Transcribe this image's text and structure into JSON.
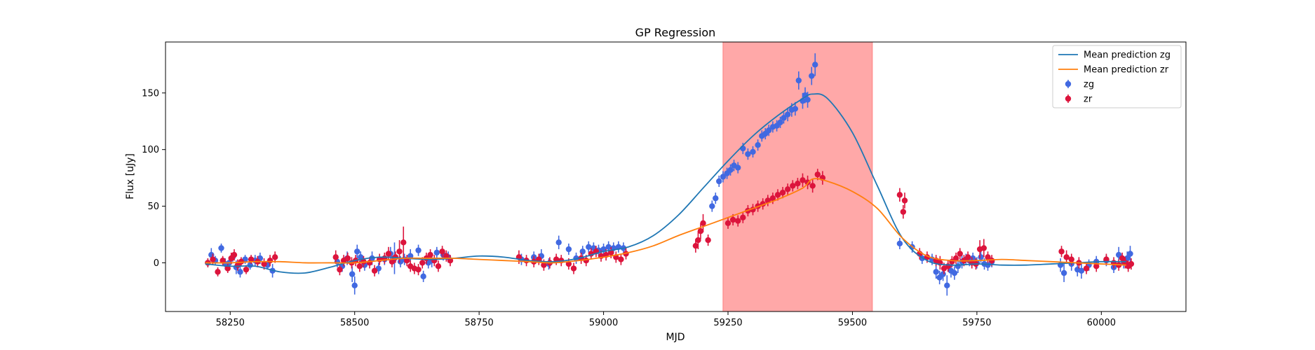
{
  "chart_data": {
    "type": "scatter",
    "title": "GP Regression",
    "xlabel": "MJD",
    "ylabel": "Flux [uJy]",
    "xlim": [
      58120,
      60170
    ],
    "ylim": [
      -43,
      195
    ],
    "xticks": [
      58250,
      58500,
      58750,
      59000,
      59250,
      59500,
      59750,
      60000
    ],
    "yticks": [
      0,
      50,
      100,
      150
    ],
    "grid": false,
    "legend_position": "top-right",
    "shaded_region": {
      "x": [
        59240,
        59540
      ],
      "color": "#ffa8a8"
    },
    "lines": [
      {
        "name": "Mean prediction zg",
        "color": "#1f77b4",
        "x": [
          58200,
          58250,
          58300,
          58350,
          58400,
          58450,
          58500,
          58550,
          58600,
          58650,
          58700,
          58750,
          58800,
          58850,
          58900,
          58950,
          59000,
          59050,
          59100,
          59150,
          59200,
          59250,
          59300,
          59350,
          59400,
          59420,
          59450,
          59500,
          59550,
          59600,
          59650,
          59700,
          59750,
          59800,
          59850,
          59900,
          59950,
          60000,
          60050
        ],
        "y": [
          -1,
          -3,
          -3,
          -8,
          -9,
          -4,
          2,
          5,
          4,
          3,
          4,
          6,
          5,
          2,
          1,
          4,
          10,
          14,
          24,
          42,
          66,
          90,
          112,
          130,
          145,
          149,
          145,
          115,
          68,
          22,
          2,
          -2,
          -1,
          -2,
          -2,
          -1,
          0,
          1,
          1
        ]
      },
      {
        "name": "Mean prediction zr",
        "color": "#ff7f0e",
        "x": [
          58200,
          58250,
          58300,
          58350,
          58400,
          58450,
          58500,
          58550,
          58600,
          58650,
          58700,
          58750,
          58800,
          58850,
          58900,
          58950,
          59000,
          59050,
          59100,
          59150,
          59200,
          59250,
          59300,
          59350,
          59400,
          59420,
          59450,
          59500,
          59550,
          59600,
          59650,
          59700,
          59750,
          59800,
          59850,
          59900,
          59950,
          60000,
          60050
        ],
        "y": [
          0,
          0,
          1,
          1,
          0,
          0,
          0,
          2,
          4,
          4,
          4,
          3,
          2,
          1,
          0,
          2,
          5,
          9,
          15,
          24,
          32,
          40,
          48,
          56,
          66,
          74,
          72,
          63,
          48,
          22,
          6,
          2,
          2,
          3,
          2,
          1,
          0,
          -1,
          -2
        ]
      }
    ],
    "series": [
      {
        "name": "zg",
        "color": "#4169e1",
        "x": [
          58205,
          58212,
          58220,
          58232,
          58240,
          58248,
          58255,
          58262,
          58270,
          58280,
          58290,
          58300,
          58310,
          58325,
          58335,
          58465,
          58475,
          58485,
          58495,
          58500,
          58505,
          58512,
          58520,
          58535,
          58548,
          58560,
          58572,
          58580,
          58592,
          58600,
          58612,
          58628,
          58638,
          58648,
          58655,
          58665,
          58678,
          58688,
          58835,
          58860,
          58875,
          58890,
          58910,
          58930,
          58945,
          58958,
          58970,
          58980,
          58990,
          59000,
          59010,
          59020,
          59030,
          59040,
          59218,
          59225,
          59232,
          59240,
          59248,
          59255,
          59262,
          59270,
          59280,
          59290,
          59300,
          59310,
          59318,
          59325,
          59332,
          59340,
          59348,
          59355,
          59362,
          59370,
          59378,
          59385,
          59392,
          59400,
          59405,
          59410,
          59418,
          59425,
          59595,
          59620,
          59640,
          59660,
          59668,
          59675,
          59682,
          59690,
          59698,
          59705,
          59712,
          59720,
          59728,
          59735,
          59742,
          59750,
          59758,
          59765,
          59772,
          59780,
          59918,
          59925,
          59940,
          59952,
          59960,
          59975,
          59990,
          60010,
          60025,
          60035,
          60045,
          60052,
          60058
        ],
        "y": [
          0,
          7,
          2,
          13,
          -1,
          0,
          5,
          -4,
          -8,
          3,
          -2,
          2,
          4,
          -2,
          -7,
          1,
          -3,
          4,
          -10,
          -20,
          10,
          5,
          -2,
          4,
          -5,
          3,
          8,
          4,
          1,
          3,
          6,
          11,
          -12,
          0,
          2,
          9,
          7,
          5,
          3,
          5,
          6,
          -1,
          18,
          12,
          4,
          10,
          14,
          13,
          11,
          12,
          14,
          13,
          14,
          13,
          50,
          57,
          72,
          76,
          79,
          82,
          86,
          84,
          101,
          96,
          98,
          104,
          112,
          114,
          117,
          120,
          121,
          124,
          128,
          131,
          135,
          136,
          161,
          143,
          148,
          144,
          165,
          175,
          17,
          14,
          4,
          3,
          -8,
          -13,
          -10,
          -20,
          -7,
          -9,
          -3,
          1,
          3,
          2,
          4,
          0,
          5,
          -1,
          -2,
          1,
          -2,
          -9,
          -1,
          -6,
          -7,
          -2,
          1,
          2,
          -4,
          7,
          0,
          4,
          8
        ],
        "err": [
          4,
          6,
          4,
          4,
          5,
          5,
          4,
          6,
          5,
          4,
          4,
          5,
          5,
          4,
          6,
          5,
          5,
          6,
          7,
          8,
          6,
          5,
          5,
          6,
          5,
          5,
          6,
          14,
          5,
          5,
          6,
          5,
          5,
          5,
          6,
          5,
          5,
          5,
          5,
          5,
          6,
          5,
          6,
          5,
          5,
          5,
          5,
          5,
          5,
          5,
          5,
          5,
          5,
          5,
          5,
          5,
          5,
          5,
          5,
          5,
          5,
          5,
          5,
          5,
          5,
          5,
          5,
          5,
          5,
          5,
          5,
          5,
          5,
          6,
          6,
          6,
          8,
          7,
          7,
          7,
          8,
          10,
          5,
          5,
          5,
          5,
          6,
          6,
          6,
          9,
          6,
          6,
          6,
          6,
          5,
          5,
          5,
          5,
          5,
          5,
          5,
          5,
          6,
          8,
          6,
          6,
          7,
          5,
          5,
          5,
          5,
          7,
          5,
          6,
          7
        ]
      },
      {
        "name": "zr",
        "color": "#dc143c",
        "x": [
          58205,
          58215,
          58225,
          58235,
          58245,
          58252,
          58258,
          58265,
          58272,
          58282,
          58292,
          58305,
          58318,
          58330,
          58340,
          58462,
          58470,
          58478,
          58486,
          58494,
          58502,
          58510,
          58518,
          58530,
          58540,
          58550,
          58560,
          58568,
          58575,
          58582,
          58590,
          58598,
          58605,
          58612,
          58620,
          58628,
          58636,
          58644,
          58652,
          58660,
          58668,
          58676,
          58684,
          58692,
          58830,
          58845,
          58860,
          58870,
          58880,
          58892,
          58905,
          58915,
          58930,
          58940,
          58955,
          58965,
          58975,
          58985,
          58995,
          59005,
          59015,
          59025,
          59035,
          59045,
          59185,
          59190,
          59195,
          59200,
          59210,
          59250,
          59260,
          59270,
          59280,
          59290,
          59300,
          59310,
          59320,
          59330,
          59340,
          59350,
          59360,
          59370,
          59380,
          59390,
          59400,
          59410,
          59420,
          59430,
          59440,
          59595,
          59602,
          59605,
          59635,
          59650,
          59668,
          59676,
          59684,
          59692,
          59700,
          59708,
          59716,
          59724,
          59732,
          59740,
          59748,
          59756,
          59764,
          59772,
          59780,
          59920,
          59930,
          59940,
          59955,
          59970,
          59990,
          60010,
          60025,
          60035,
          60042,
          60048,
          60054,
          60060
        ],
        "y": [
          0,
          3,
          -8,
          2,
          -5,
          4,
          7,
          -2,
          1,
          -6,
          3,
          1,
          -1,
          2,
          5,
          5,
          -6,
          2,
          4,
          0,
          2,
          -3,
          1,
          0,
          -7,
          3,
          4,
          8,
          1,
          5,
          10,
          18,
          2,
          -3,
          -5,
          -6,
          0,
          4,
          7,
          2,
          -3,
          10,
          6,
          2,
          5,
          2,
          1,
          3,
          -2,
          0,
          3,
          2,
          -1,
          -5,
          4,
          2,
          8,
          10,
          6,
          7,
          9,
          5,
          3,
          8,
          15,
          20,
          28,
          35,
          20,
          35,
          38,
          37,
          40,
          46,
          47,
          50,
          52,
          55,
          57,
          60,
          62,
          65,
          68,
          70,
          73,
          71,
          68,
          78,
          75,
          60,
          45,
          55,
          8,
          5,
          2,
          0,
          -5,
          -3,
          1,
          4,
          8,
          2,
          5,
          0,
          -1,
          12,
          13,
          5,
          2,
          10,
          5,
          3,
          0,
          -5,
          -3,
          3,
          0,
          -2,
          4,
          0,
          -3,
          -1
        ],
        "err": [
          4,
          5,
          4,
          4,
          4,
          5,
          5,
          5,
          4,
          4,
          4,
          5,
          5,
          5,
          5,
          6,
          5,
          5,
          5,
          5,
          5,
          5,
          5,
          5,
          5,
          5,
          5,
          6,
          5,
          5,
          10,
          14,
          5,
          5,
          5,
          5,
          5,
          5,
          5,
          5,
          5,
          5,
          5,
          5,
          6,
          5,
          5,
          5,
          5,
          5,
          5,
          5,
          5,
          5,
          5,
          5,
          5,
          5,
          5,
          5,
          5,
          5,
          5,
          5,
          6,
          8,
          7,
          8,
          5,
          5,
          5,
          5,
          5,
          5,
          5,
          5,
          5,
          5,
          5,
          5,
          5,
          5,
          5,
          5,
          6,
          6,
          6,
          5,
          6,
          6,
          6,
          7,
          5,
          5,
          5,
          6,
          5,
          5,
          5,
          5,
          5,
          5,
          5,
          5,
          5,
          8,
          8,
          5,
          5,
          5,
          6,
          5,
          5,
          5,
          5,
          5,
          5,
          5,
          5,
          5,
          5,
          5
        ]
      }
    ]
  }
}
